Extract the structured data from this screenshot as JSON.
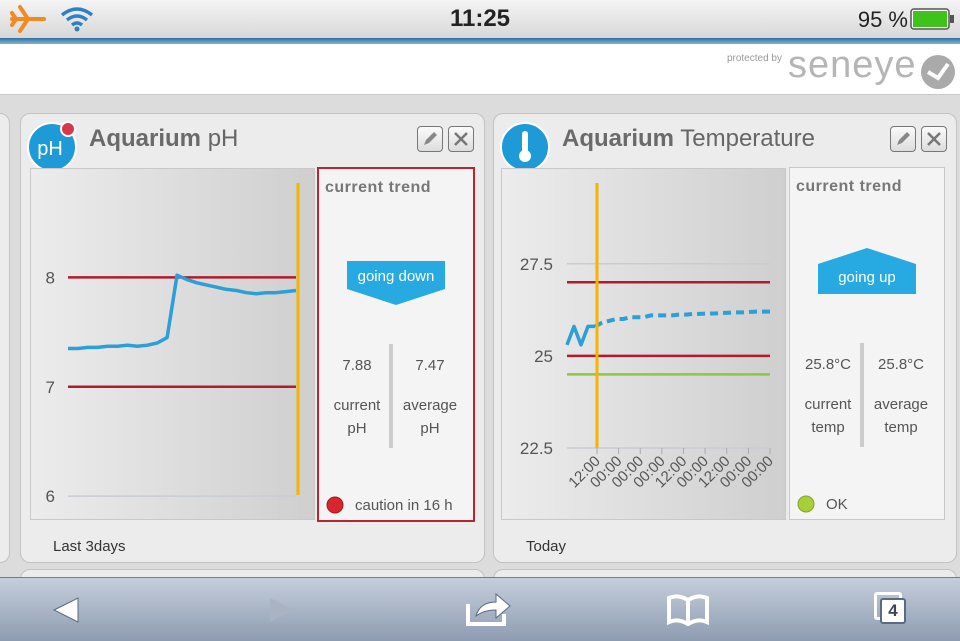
{
  "status_bar": {
    "time": "11:25",
    "battery": "95 %"
  },
  "header": {
    "protected_by": "protected by",
    "brand": "seneye"
  },
  "widgets": [
    {
      "icon": "pH",
      "title_bold": "Aquarium",
      "title": "pH",
      "chart": {
        "type": "line",
        "ylim": [
          5.8,
          9
        ],
        "yticks": [
          6,
          7,
          8
        ],
        "grid": true,
        "thresholds": [
          {
            "value": 8,
            "color": "#b01c2e"
          },
          {
            "value": 7,
            "color": "#b01c2e"
          }
        ],
        "series": [
          {
            "color": "#2b9fd6",
            "values": [
              7.35,
              7.35,
              7.36,
              7.36,
              7.37,
              7.37,
              7.38,
              7.37,
              7.38,
              7.4,
              7.45,
              8.02,
              7.98,
              7.95,
              7.93,
              7.91,
              7.89,
              7.88,
              7.86,
              7.85,
              7.86,
              7.86,
              7.87,
              7.88
            ]
          }
        ]
      },
      "trend_heading": "current trend",
      "trend": "going down",
      "current_value": "7.88",
      "current_label": [
        "current",
        "pH"
      ],
      "average_value": "7.47",
      "average_label": [
        "average",
        "pH"
      ],
      "status": "caution in 16 h",
      "period": "Last 3days"
    },
    {
      "icon": "",
      "title_bold": "Aquarium",
      "title": "Temperature",
      "chart": {
        "type": "line",
        "ylim": [
          20.6,
          30.1
        ],
        "yticks": [
          22.5,
          25,
          27.5
        ],
        "grid": true,
        "thresholds": [
          {
            "value": 27,
            "color": "#b01c2e"
          },
          {
            "value": 25,
            "color": "#b01c2e"
          },
          {
            "value": 24.5,
            "color": "#8dc63f"
          }
        ],
        "xticks": [
          "12:00",
          "00:00",
          "00:00",
          "00:00",
          "12:00",
          "00:00",
          "12:00",
          "00:00",
          "00:00"
        ],
        "series": [
          {
            "color": "#2b9fd6",
            "values": [
              25.3,
              25.8,
              25.3,
              25.8,
              25.8,
              null,
              null,
              null,
              null,
              null,
              null,
              null,
              null,
              null,
              null,
              null,
              null,
              null,
              null,
              null,
              null,
              null,
              null,
              null,
              null,
              null,
              null,
              null,
              null,
              null
            ]
          },
          {
            "color": "#2b9fd6",
            "dashed": true,
            "values": [
              null,
              null,
              null,
              null,
              25.8,
              25.9,
              25.95,
              26.0,
              26.0,
              26.05,
              26.05,
              26.05,
              26.1,
              26.1,
              26.1,
              26.1,
              26.12,
              26.12,
              26.14,
              26.14,
              26.15,
              26.15,
              26.16,
              26.17,
              26.18,
              26.18,
              26.19,
              26.2,
              26.2,
              26.2
            ]
          }
        ]
      },
      "trend_heading": "current trend",
      "trend": "going up",
      "current_value": "25.8°C",
      "current_label": [
        "current",
        "temp"
      ],
      "average_value": "25.8°C",
      "average_label": [
        "average",
        "temp"
      ],
      "status": "OK",
      "period": "Today"
    }
  ],
  "toolbar": {
    "tabs": "4"
  }
}
